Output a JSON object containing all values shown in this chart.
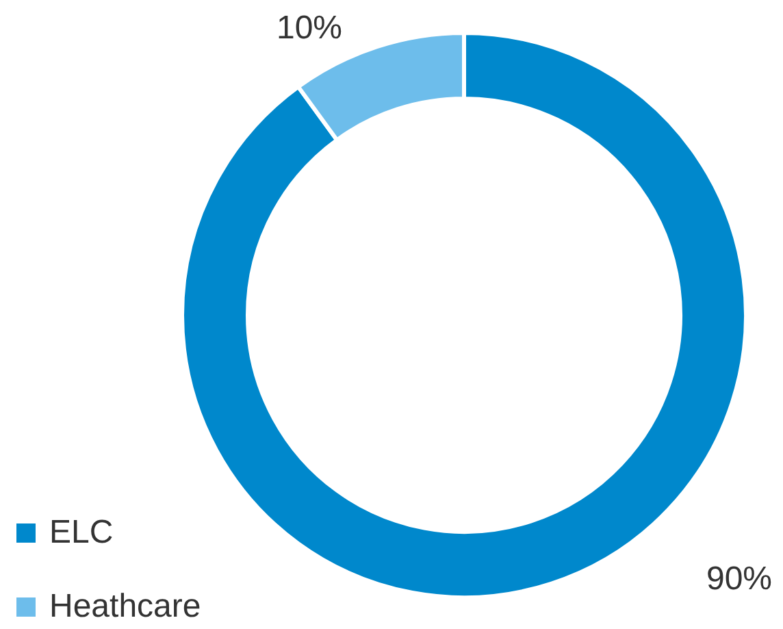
{
  "chart_data": {
    "type": "donut",
    "categories": [
      "ELC",
      "Heathcare"
    ],
    "values": [
      90,
      10
    ],
    "colors": [
      "#0088cc",
      "#6dbdeb"
    ],
    "value_labels": [
      "90%",
      "10%"
    ],
    "legend": "bottom left"
  }
}
